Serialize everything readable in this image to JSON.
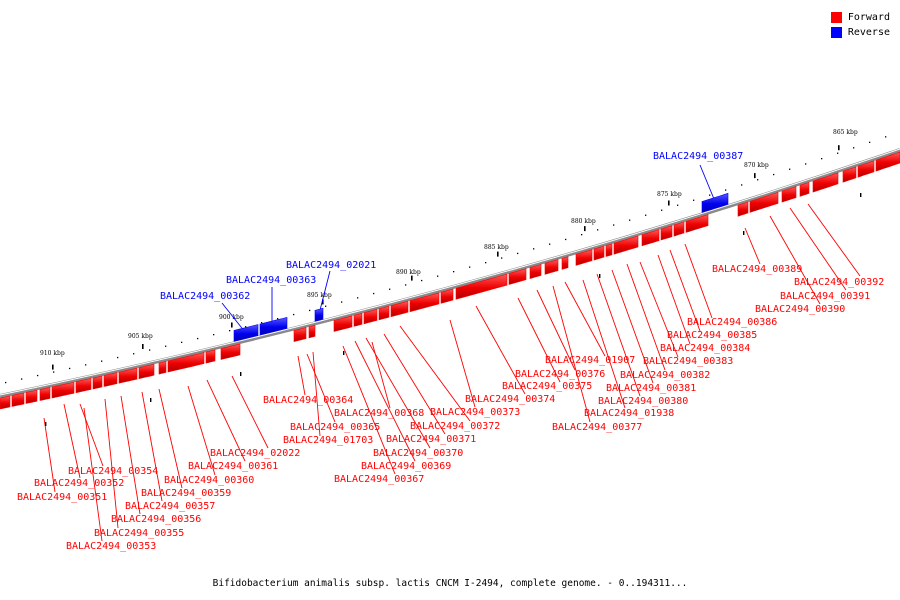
{
  "legend": {
    "forward": {
      "label": "Forward",
      "color": "#ff0000"
    },
    "reverse": {
      "label": "Reverse",
      "color": "#0000ff"
    }
  },
  "caption": "Bifidobacterium animalis subsp. lactis CNCM I-2494, complete genome. - 0..194311...",
  "scale_ticks": [
    "865 kbp",
    "870 kbp",
    "875 kbp",
    "880 kbp",
    "885 kbp",
    "890 kbp",
    "895 kbp",
    "900 kbp",
    "905 kbp",
    "910 kbp"
  ],
  "genes_reverse": [
    "BALAC2494_00387",
    "BALAC2494_02021",
    "BALAC2494_00363",
    "BALAC2494_00362"
  ],
  "genes_forward": [
    "BALAC2494_00389",
    "BALAC2494_00392",
    "BALAC2494_00391",
    "BALAC2494_00390",
    "BALAC2494_00386",
    "BALAC2494_00385",
    "BALAC2494_00384",
    "BALAC2494_00383",
    "BALAC2494_00382",
    "BALAC2494_00381",
    "BALAC2494_00380",
    "BALAC2494_01938",
    "BALAC2494_00377",
    "BALAC2494_01907",
    "BALAC2494_00376",
    "BALAC2494_00375",
    "BALAC2494_00374",
    "BALAC2494_00373",
    "BALAC2494_00372",
    "BALAC2494_00371",
    "BALAC2494_00370",
    "BALAC2494_00369",
    "BALAC2494_00367",
    "BALAC2494_00368",
    "BALAC2494_00364",
    "BALAC2494_00365",
    "BALAC2494_01703",
    "BALAC2494_02022",
    "BALAC2494_00361",
    "BALAC2494_00360",
    "BALAC2494_00359",
    "BALAC2494_00357",
    "BALAC2494_00356",
    "BALAC2494_00355",
    "BALAC2494_00354",
    "BALAC2494_00352",
    "BALAC2494_00351",
    "BALAC2494_00353"
  ]
}
